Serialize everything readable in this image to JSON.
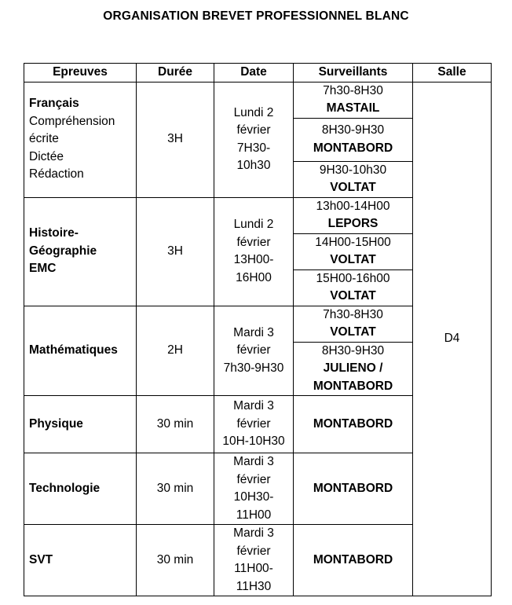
{
  "title": "ORGANISATION BREVET PROFESSIONNEL BLANC",
  "headers": [
    "Epreuves",
    "Durée",
    "Date",
    "Surveillants",
    "Salle"
  ],
  "salle": "D4",
  "rows": [
    {
      "epreuve": "Français",
      "details": "Compréhension\nécrite\nDictée\nRédaction",
      "duree": "3H",
      "date": "Lundi 2\nfévrier\n7H30-\n10h30",
      "slots": [
        {
          "time": "7h30-8H30",
          "name": "MASTAIL"
        },
        {
          "time": "8H30-9H30",
          "name": "MONTABORD"
        },
        {
          "time": "9H30-10h30",
          "name": "VOLTAT"
        }
      ]
    },
    {
      "epreuve": "Histoire-\nGéographie\nEMC",
      "duree": "3H",
      "date": "Lundi 2\nfévrier\n13H00-\n16H00",
      "slots": [
        {
          "time": "13h00-14H00",
          "name": "LEPORS"
        },
        {
          "time": "14H00-15H00",
          "name": "VOLTAT"
        },
        {
          "time": "15H00-16h00",
          "name": "VOLTAT"
        }
      ]
    },
    {
      "epreuve": "Mathématiques",
      "duree": "2H",
      "date": "Mardi 3\nfévrier\n7h30-9H30",
      "slots": [
        {
          "time": "7h30-8H30",
          "name": "VOLTAT"
        },
        {
          "time": "8H30-9H30",
          "name": "JULIENO /\nMONTABORD"
        }
      ]
    },
    {
      "epreuve": "Physique",
      "duree": "30 min",
      "date": "Mardi 3\nfévrier\n10H-10H30",
      "slots": [
        {
          "name": "MONTABORD"
        }
      ]
    },
    {
      "epreuve": "Technologie",
      "duree": "30 min",
      "date": "Mardi 3\nfévrier\n10H30-\n11H00",
      "slots": [
        {
          "name": "MONTABORD"
        }
      ]
    },
    {
      "epreuve": "SVT",
      "duree": "30 min",
      "date": "Mardi 3\nfévrier\n11H00-\n11H30",
      "slots": [
        {
          "name": "MONTABORD"
        }
      ]
    }
  ]
}
